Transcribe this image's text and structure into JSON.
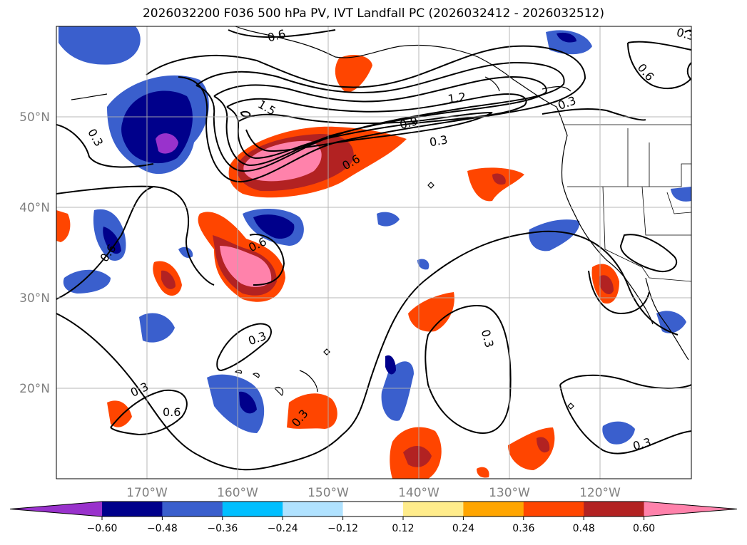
{
  "title": "2026032200 F036 500 hPa PV, IVT Landfall PC (2026032412 - 2026032512)",
  "lon_labels": [
    "170°W",
    "160°W",
    "150°W",
    "140°W",
    "130°W",
    "120°W"
  ],
  "lat_labels": [
    "50°N",
    "40°N",
    "30°N",
    "20°N"
  ],
  "colorbar": {
    "colors": [
      "#9932CC",
      "#00008B",
      "#3A5FCD",
      "#00BFFF",
      "#B0E2FF",
      "#FFFFFF",
      "#FFEC8B",
      "#FFA500",
      "#FF4500",
      "#B22222",
      "#FF82AB"
    ],
    "tick_labels": [
      "−0.60",
      "−0.48",
      "−0.36",
      "−0.24",
      "−0.12",
      "0.12",
      "0.24",
      "0.36",
      "0.48",
      "0.60"
    ]
  },
  "contour_labels": [
    "0.6",
    "0.6",
    "1.5",
    "1.2",
    "0.9",
    "0.3",
    "0.3",
    "0.6",
    "0.6",
    "0.3",
    "0.6",
    "0.3",
    "0.3",
    "0.3",
    "0.6",
    "0.3",
    "0.3",
    "0.3"
  ]
}
